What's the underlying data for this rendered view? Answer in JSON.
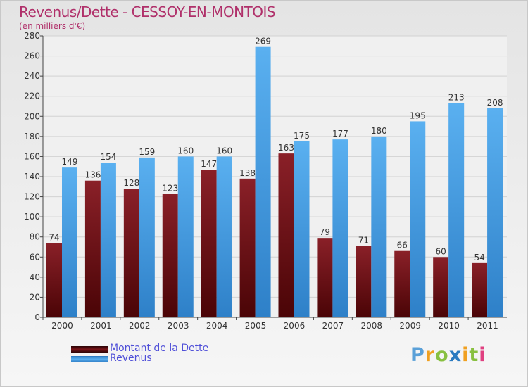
{
  "chart_data": {
    "type": "bar",
    "title": "Revenus/Dette - CESSOY-EN-MONTOIS",
    "subtitle": "(en milliers d'€)",
    "categories": [
      "2000",
      "2001",
      "2002",
      "2003",
      "2004",
      "2005",
      "2006",
      "2007",
      "2008",
      "2009",
      "2010",
      "2011"
    ],
    "series": [
      {
        "name": "Montant de la Dette",
        "values": [
          74,
          136,
          128,
          123,
          147,
          138,
          163,
          79,
          71,
          66,
          60,
          54
        ],
        "color": "#7a1418"
      },
      {
        "name": "Revenus",
        "values": [
          149,
          154,
          159,
          160,
          160,
          269,
          175,
          177,
          180,
          195,
          213,
          208
        ],
        "color": "#4aa0e6"
      }
    ],
    "ylim": [
      0,
      280
    ],
    "yticks": [
      0,
      20,
      40,
      60,
      80,
      100,
      120,
      140,
      160,
      180,
      200,
      220,
      240,
      260,
      280
    ],
    "grid": true,
    "legend_position": "bottom-left"
  },
  "logo": {
    "letters": [
      "P",
      "r",
      "o",
      "x",
      "i",
      "t",
      "i"
    ],
    "colors": [
      "#5aa0d8",
      "#f0a020",
      "#88c040",
      "#2a7ac0",
      "#f0a020",
      "#88c040",
      "#e04080"
    ]
  }
}
